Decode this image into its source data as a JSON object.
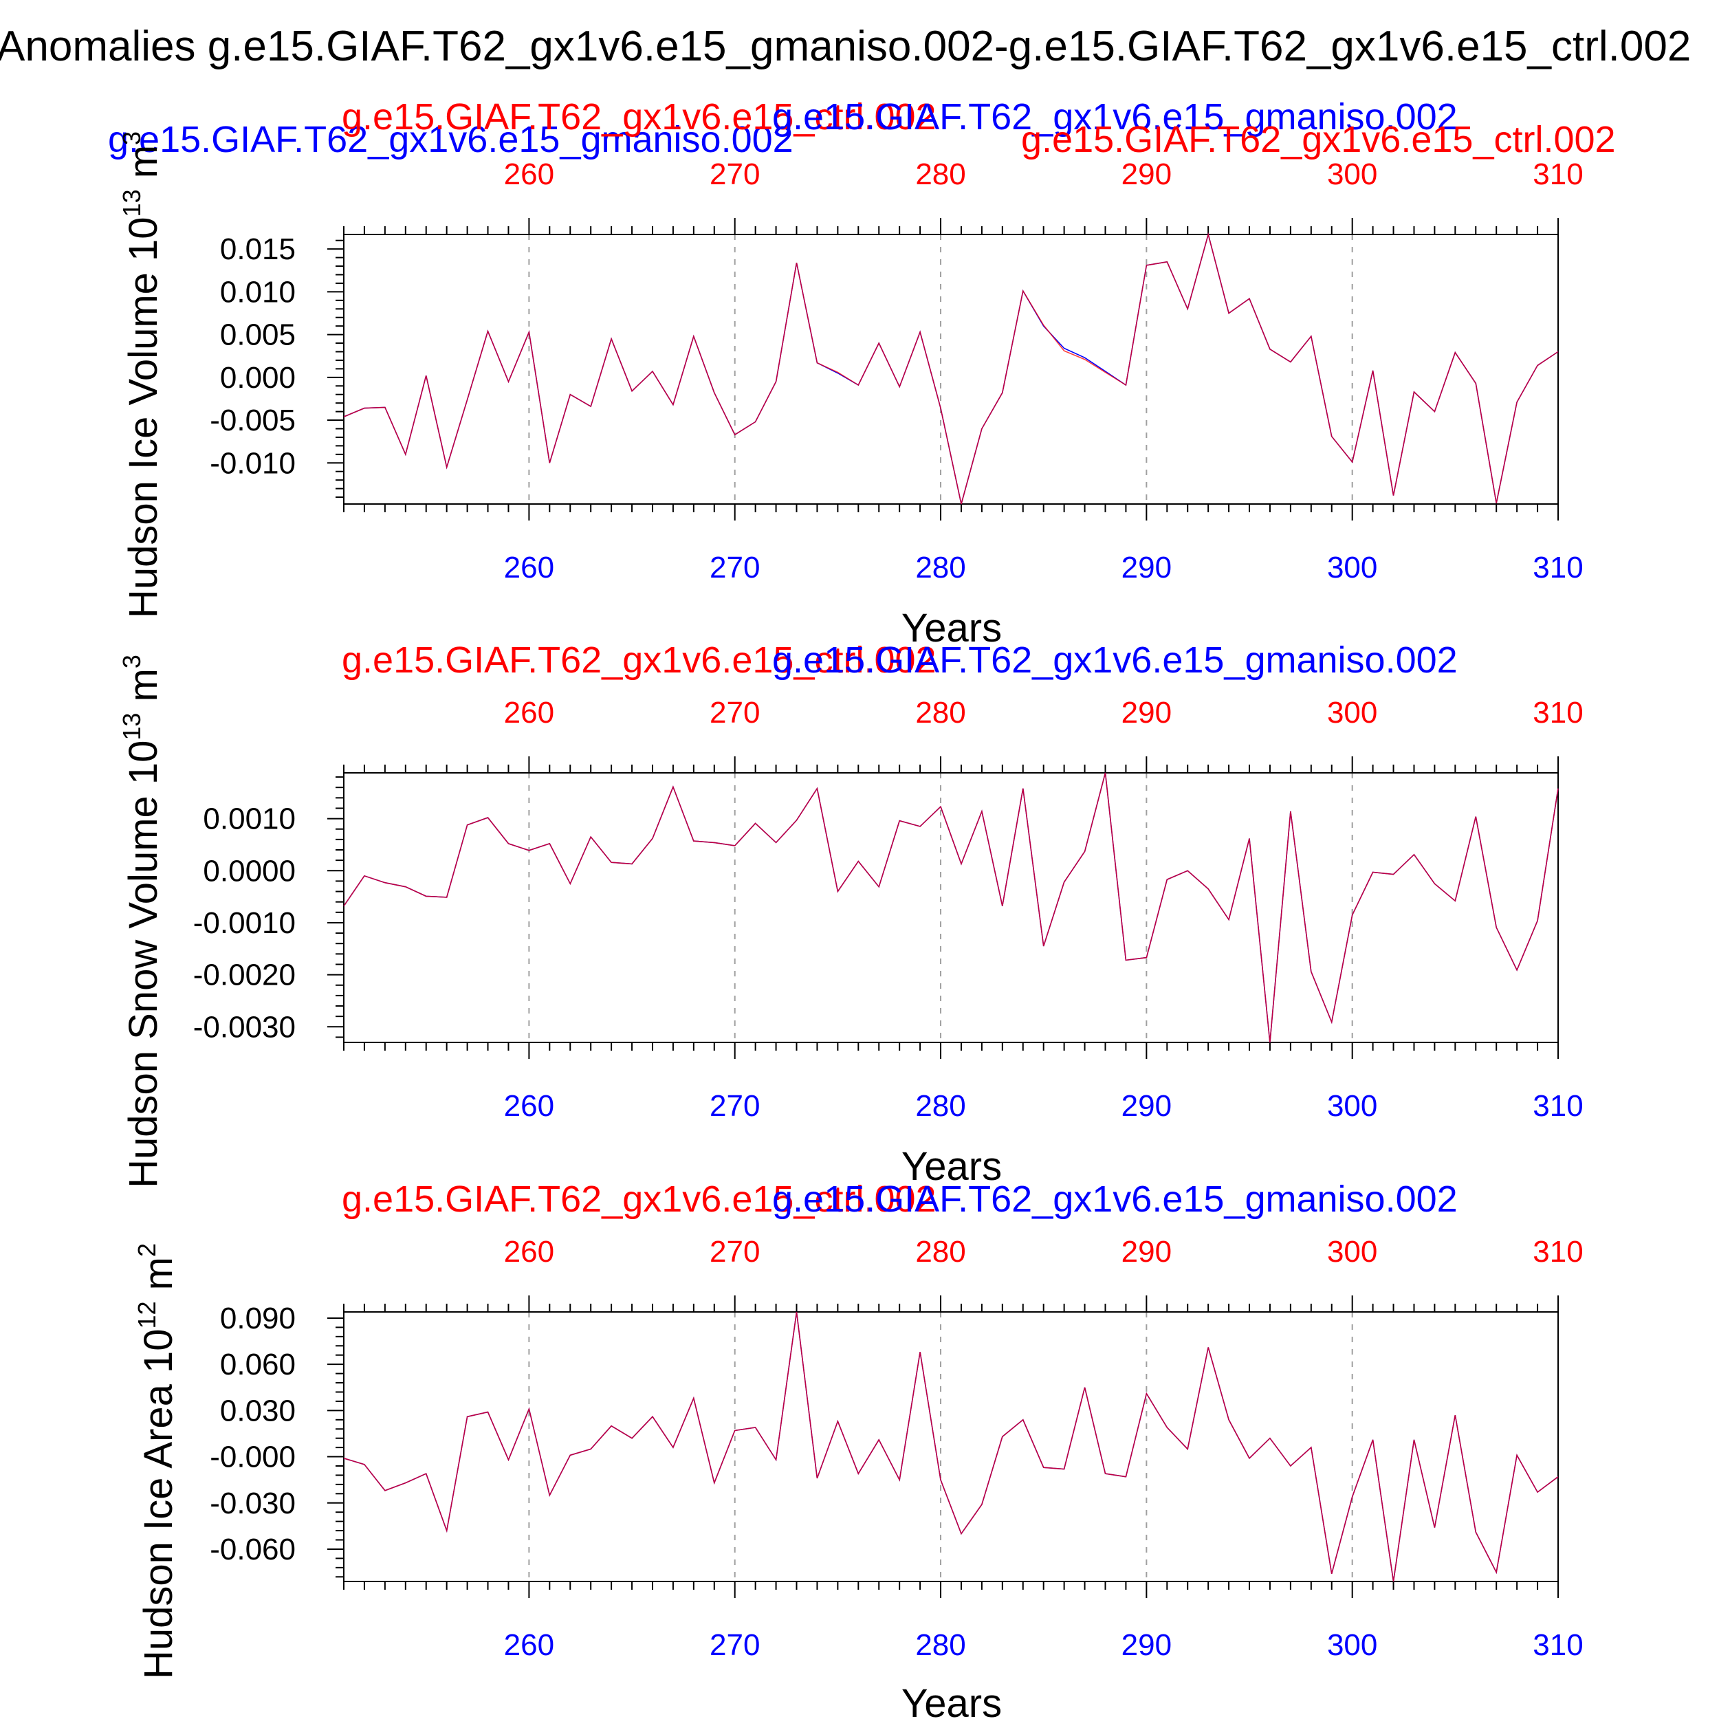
{
  "figure": {
    "main_title": "Anomalies g.e15.GIAF.T62_gx1v6.e15_gmaniso.002-g.e15.GIAF.T62_gx1v6.e15_ctrl.002",
    "colors": {
      "ctrl": "#ff0000",
      "gmaniso": "#0000ff",
      "axis": "#000000",
      "grid": "#a0a0a0"
    }
  },
  "chart_data": [
    {
      "type": "line",
      "title_left": "g.e15.GIAF.T62_gx1v6.e15_gmaniso.002",
      "title_center_red": "g.e15.GIAF.T62_gx1v6.e15_ctrl.002",
      "title_center_blue": "g.e15.GIAF.T62_gx1v6.e15_gmaniso.002",
      "title_right": "g.e15.GIAF.T62_gx1v6.e15_ctrl.002",
      "ylabel": "Hudson Ice Volume 10^13 m^3",
      "ylabel_main": "Hudson Ice Volume 10",
      "ylabel_exp": "13",
      "ylabel_unit": " m",
      "ylabel_unit_exp": "3",
      "xlabel": "Years",
      "xlim": [
        251,
        310
      ],
      "ylim": [
        -0.0148,
        0.0167
      ],
      "x_ticks": [
        "260",
        "270",
        "280",
        "290",
        "300",
        "310"
      ],
      "y_ticks": [
        "0.015",
        "0.010",
        "0.005",
        "0.000",
        "-0.005",
        "-0.010"
      ],
      "y_tick_values": [
        0.015,
        0.01,
        0.005,
        0.0,
        -0.005,
        -0.01
      ],
      "x": [
        251,
        252,
        253,
        254,
        255,
        256,
        257,
        258,
        259,
        260,
        261,
        262,
        263,
        264,
        265,
        266,
        267,
        268,
        269,
        270,
        271,
        272,
        273,
        274,
        275,
        276,
        277,
        278,
        279,
        280,
        281,
        282,
        283,
        284,
        285,
        286,
        287,
        288,
        289,
        290,
        291,
        292,
        293,
        294,
        295,
        296,
        297,
        298,
        299,
        300,
        301,
        302,
        303,
        304,
        305,
        306,
        307,
        308,
        309,
        310
      ],
      "series": [
        {
          "name": "g.e15.GIAF.T62_gx1v6.e15_ctrl.002",
          "color": "#ff0000",
          "values": [
            -0.0046,
            -0.0036,
            -0.0035,
            -0.009,
            0.0002,
            -0.0105,
            -0.0026,
            0.0054,
            -0.0005,
            0.0053,
            -0.01,
            -0.002,
            -0.0034,
            0.0045,
            -0.0016,
            0.0007,
            -0.0032,
            0.0048,
            -0.0018,
            -0.0067,
            -0.0052,
            -0.0005,
            0.0134,
            0.0017,
            0.0006,
            -0.0009,
            0.004,
            -0.0011,
            0.0053,
            -0.0036,
            -0.0148,
            -0.006,
            -0.0018,
            0.0101,
            0.0061,
            0.0031,
            0.0021,
            0.0006,
            -0.0009,
            0.0131,
            0.0135,
            0.008,
            0.0167,
            0.0075,
            0.0092,
            0.0033,
            0.0018,
            0.0048,
            -0.0069,
            -0.0099,
            0.0008,
            -0.0138,
            -0.0017,
            -0.004,
            0.0029,
            -0.0007,
            -0.0147,
            -0.0029,
            0.0014,
            0.003
          ]
        },
        {
          "name": "g.e15.GIAF.T62_gx1v6.e15_gmaniso.002",
          "color": "#0000ff",
          "values": [
            -0.0046,
            -0.0036,
            -0.0035,
            -0.009,
            0.0002,
            -0.0105,
            -0.0026,
            0.0054,
            -0.0005,
            0.0053,
            -0.01,
            -0.002,
            -0.0034,
            0.0045,
            -0.0016,
            0.0007,
            -0.0032,
            0.0048,
            -0.0018,
            -0.0067,
            -0.0052,
            -0.0005,
            0.0134,
            0.0017,
            0.0005,
            -0.0009,
            0.004,
            -0.0011,
            0.0053,
            -0.0036,
            -0.0148,
            -0.006,
            -0.0018,
            0.0101,
            0.006,
            0.0034,
            0.0023,
            0.0007,
            -0.0009,
            0.0131,
            0.0135,
            0.008,
            0.0167,
            0.0075,
            0.0092,
            0.0033,
            0.0018,
            0.0048,
            -0.0069,
            -0.0099,
            0.0008,
            -0.0138,
            -0.0017,
            -0.004,
            0.0029,
            -0.0007,
            -0.0147,
            -0.0029,
            0.0014,
            0.003
          ]
        }
      ]
    },
    {
      "type": "line",
      "title_left": "g.e15.GIAF.T62_gx1v6.e15_ctrl.002",
      "title_center_red": "",
      "title_center_blue": "",
      "title_right": "g.e15.GIAF.T62_gx1v6.e15_gmaniso.002",
      "ylabel": "Hudson Snow Volume 10^13 m^3",
      "ylabel_main": "Hudson Snow Volume 10",
      "ylabel_exp": "13",
      "ylabel_unit": " m",
      "ylabel_unit_exp": "3",
      "xlabel": "Years",
      "xlim": [
        251,
        310
      ],
      "ylim": [
        -0.0033,
        0.00188
      ],
      "x_ticks": [
        "260",
        "270",
        "280",
        "290",
        "300",
        "310"
      ],
      "y_ticks": [
        "0.0010",
        "0.0000",
        "-0.0010",
        "-0.0020",
        "-0.0030"
      ],
      "y_tick_values": [
        0.001,
        0.0,
        -0.001,
        -0.002,
        -0.003
      ],
      "x": [
        251,
        252,
        253,
        254,
        255,
        256,
        257,
        258,
        259,
        260,
        261,
        262,
        263,
        264,
        265,
        266,
        267,
        268,
        269,
        270,
        271,
        272,
        273,
        274,
        275,
        276,
        277,
        278,
        279,
        280,
        281,
        282,
        283,
        284,
        285,
        286,
        287,
        288,
        289,
        290,
        291,
        292,
        293,
        294,
        295,
        296,
        297,
        298,
        299,
        300,
        301,
        302,
        303,
        304,
        305,
        306,
        307,
        308,
        309,
        310
      ],
      "series": [
        {
          "name": "g.e15.GIAF.T62_gx1v6.e15_ctrl.002",
          "color": "#ff0000",
          "values": [
            -0.00068,
            -0.0001,
            -0.00023,
            -0.00031,
            -0.00049,
            -0.00051,
            0.00088,
            0.00102,
            0.00052,
            0.00039,
            0.00052,
            -0.00025,
            0.00065,
            0.00016,
            0.00013,
            0.00062,
            0.00161,
            0.00057,
            0.00054,
            0.00048,
            0.00091,
            0.00054,
            0.00097,
            0.00158,
            -0.0004,
            0.00018,
            -0.00031,
            0.00096,
            0.00085,
            0.00123,
            0.00013,
            0.00114,
            -0.00068,
            0.00158,
            -0.00145,
            -0.00022,
            0.00037,
            0.00188,
            -0.00172,
            -0.00167,
            -0.00017,
            0.0,
            -0.00035,
            -0.00094,
            0.00062,
            -0.0033,
            0.00114,
            -0.00194,
            -0.00291,
            -0.00085,
            -3e-05,
            -7e-05,
            0.00031,
            -0.00025,
            -0.00058,
            0.00104,
            -0.00109,
            -0.00191,
            -0.00096,
            0.00158
          ]
        },
        {
          "name": "g.e15.GIAF.T62_gx1v6.e15_gmaniso.002",
          "color": "#0000ff",
          "values": [
            -0.00068,
            -0.0001,
            -0.00023,
            -0.00031,
            -0.00049,
            -0.00051,
            0.00088,
            0.00102,
            0.00052,
            0.00039,
            0.00052,
            -0.00025,
            0.00065,
            0.00016,
            0.00013,
            0.00062,
            0.00161,
            0.00057,
            0.00054,
            0.00048,
            0.00091,
            0.00054,
            0.00097,
            0.00158,
            -0.0004,
            0.00018,
            -0.00031,
            0.00096,
            0.00085,
            0.00123,
            0.00013,
            0.00114,
            -0.00068,
            0.00158,
            -0.00145,
            -0.00022,
            0.00037,
            0.00188,
            -0.00172,
            -0.00167,
            -0.00017,
            0.0,
            -0.00035,
            -0.00094,
            0.00062,
            -0.0033,
            0.00114,
            -0.00194,
            -0.00291,
            -0.00085,
            -3e-05,
            -7e-05,
            0.00031,
            -0.00025,
            -0.00058,
            0.00104,
            -0.00109,
            -0.00191,
            -0.00096,
            0.00158
          ]
        }
      ]
    },
    {
      "type": "line",
      "title_left": "g.e15.GIAF.T62_gx1v6.e15_ctrl.002",
      "title_center_red": "",
      "title_center_blue": "",
      "title_right": "g.e15.GIAF.T62_gx1v6.e15_gmaniso.002",
      "ylabel": "Hudson Ice Area 10^12 m^2",
      "ylabel_main": "Hudson Ice Area 10",
      "ylabel_exp": "12",
      "ylabel_unit": " m",
      "ylabel_unit_exp": "2",
      "xlabel": "Years",
      "xlim": [
        251,
        310
      ],
      "ylim": [
        -0.081,
        0.094
      ],
      "x_ticks": [
        "260",
        "270",
        "280",
        "290",
        "300",
        "310"
      ],
      "y_ticks": [
        "0.090",
        "0.060",
        "0.030",
        "-0.000",
        "-0.030",
        "-0.060"
      ],
      "y_tick_values": [
        0.09,
        0.06,
        0.03,
        0.0,
        -0.03,
        -0.06
      ],
      "x": [
        251,
        252,
        253,
        254,
        255,
        256,
        257,
        258,
        259,
        260,
        261,
        262,
        263,
        264,
        265,
        266,
        267,
        268,
        269,
        270,
        271,
        272,
        273,
        274,
        275,
        276,
        277,
        278,
        279,
        280,
        281,
        282,
        283,
        284,
        285,
        286,
        287,
        288,
        289,
        290,
        291,
        292,
        293,
        294,
        295,
        296,
        297,
        298,
        299,
        300,
        301,
        302,
        303,
        304,
        305,
        306,
        307,
        308,
        309,
        310
      ],
      "series": [
        {
          "name": "g.e15.GIAF.T62_gx1v6.e15_ctrl.002",
          "color": "#ff0000",
          "values": [
            -0.001,
            -0.005,
            -0.022,
            -0.017,
            -0.011,
            -0.048,
            0.026,
            0.029,
            -0.002,
            0.031,
            -0.025,
            0.001,
            0.005,
            0.02,
            0.012,
            0.026,
            0.006,
            0.038,
            -0.017,
            0.017,
            0.019,
            -0.002,
            0.094,
            -0.014,
            0.023,
            -0.011,
            0.011,
            -0.015,
            0.068,
            -0.015,
            -0.05,
            -0.031,
            0.013,
            0.024,
            -0.007,
            -0.008,
            0.045,
            -0.011,
            -0.013,
            0.041,
            0.019,
            0.005,
            0.071,
            0.024,
            -0.001,
            0.012,
            -0.006,
            0.006,
            -0.076,
            -0.026,
            0.011,
            -0.081,
            0.011,
            -0.046,
            0.027,
            -0.049,
            -0.075,
            0.001,
            -0.023,
            -0.013
          ]
        },
        {
          "name": "g.e15.GIAF.T62_gx1v6.e15_gmaniso.002",
          "color": "#0000ff",
          "values": [
            -0.001,
            -0.005,
            -0.022,
            -0.017,
            -0.011,
            -0.048,
            0.026,
            0.029,
            -0.002,
            0.031,
            -0.025,
            0.001,
            0.005,
            0.02,
            0.012,
            0.026,
            0.006,
            0.038,
            -0.017,
            0.017,
            0.019,
            -0.002,
            0.094,
            -0.014,
            0.023,
            -0.011,
            0.011,
            -0.015,
            0.068,
            -0.015,
            -0.05,
            -0.031,
            0.013,
            0.024,
            -0.007,
            -0.008,
            0.045,
            -0.011,
            -0.013,
            0.041,
            0.019,
            0.005,
            0.071,
            0.024,
            -0.001,
            0.012,
            -0.006,
            0.006,
            -0.076,
            -0.026,
            0.011,
            -0.081,
            0.011,
            -0.046,
            0.027,
            -0.049,
            -0.075,
            0.001,
            -0.023,
            -0.013
          ]
        }
      ]
    }
  ]
}
